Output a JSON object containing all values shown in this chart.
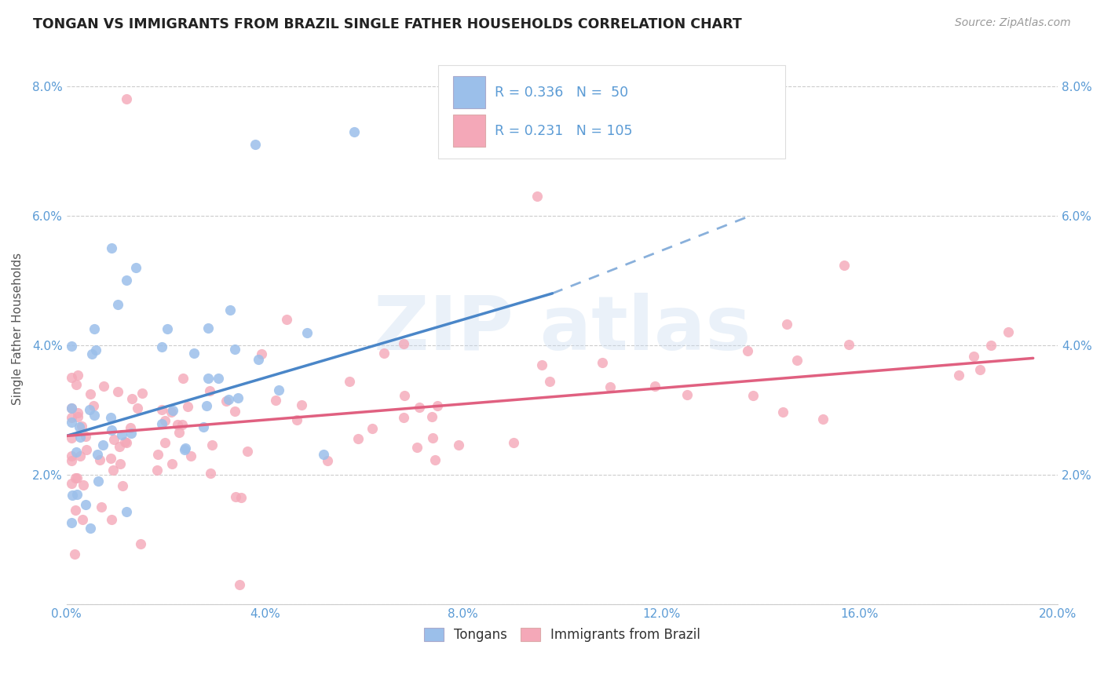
{
  "title": "TONGAN VS IMMIGRANTS FROM BRAZIL SINGLE FATHER HOUSEHOLDS CORRELATION CHART",
  "source": "Source: ZipAtlas.com",
  "ylabel": "Single Father Households",
  "legend_label1": "Tongans",
  "legend_label2": "Immigrants from Brazil",
  "R1": 0.336,
  "N1": 50,
  "R2": 0.231,
  "N2": 105,
  "color1": "#9bbfea",
  "color2": "#f4a8b8",
  "line_color1": "#4a86c8",
  "line_color2": "#e06080",
  "background_color": "#ffffff",
  "grid_color": "#cccccc",
  "title_fontsize": 12.5,
  "source_fontsize": 10,
  "tick_label_color": "#5b9bd5",
  "ylabel_color": "#555555",
  "watermark_color": "#c5d8ee",
  "xlim": [
    0.0,
    0.2
  ],
  "ylim": [
    0.0,
    0.085
  ],
  "xtick_vals": [
    0.0,
    0.04,
    0.08,
    0.12,
    0.16,
    0.2
  ],
  "ytick_vals": [
    0.0,
    0.02,
    0.04,
    0.06,
    0.08
  ]
}
